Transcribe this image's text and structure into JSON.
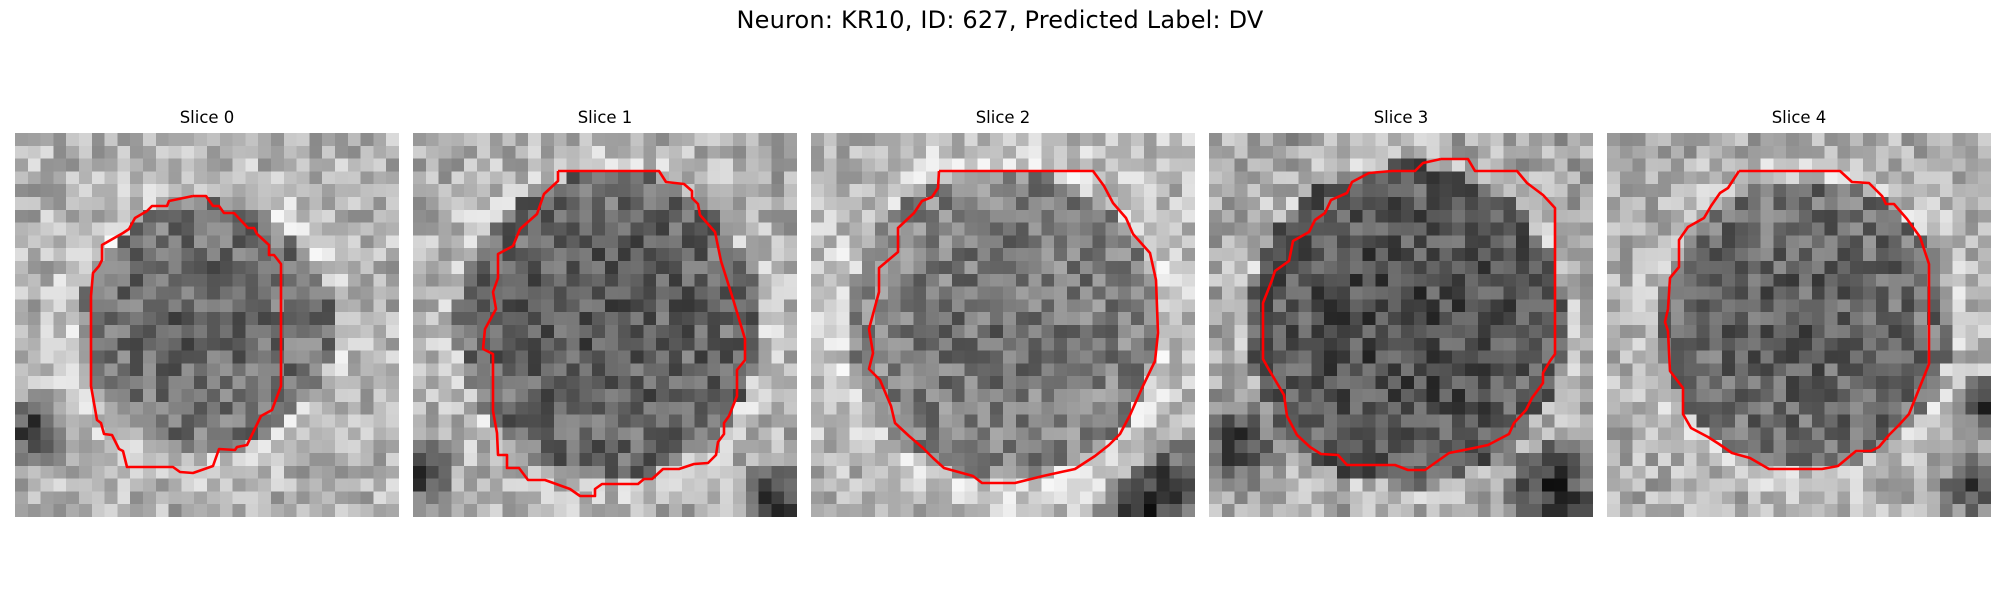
{
  "figure": {
    "title": "Neuron: KR10, ID: 627, Predicted Label: DV"
  },
  "panels": [
    {
      "title": "Slice 0"
    },
    {
      "title": "Slice 1"
    },
    {
      "title": "Slice 2"
    },
    {
      "title": "Slice 3"
    },
    {
      "title": "Slice 4"
    }
  ],
  "colors": {
    "contour": "#ff0000",
    "background": "#ffffff"
  },
  "image": {
    "colormap": "grayscale",
    "grid_cells": 30
  }
}
